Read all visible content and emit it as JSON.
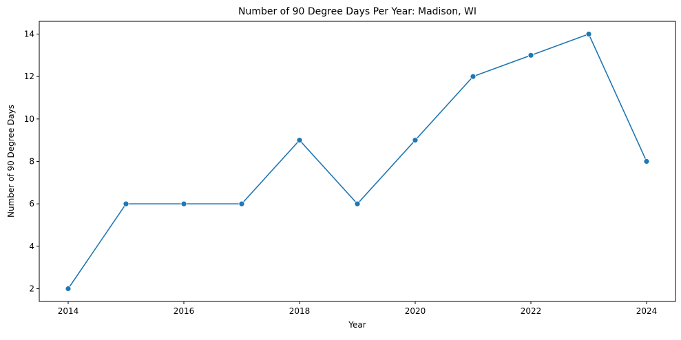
{
  "chart_data": {
    "type": "line",
    "title": "Number of 90 Degree Days Per Year: Madison, WI",
    "xlabel": "Year",
    "ylabel": "Number of 90 Degree Days",
    "x": [
      2014,
      2015,
      2016,
      2017,
      2018,
      2019,
      2020,
      2021,
      2022,
      2023,
      2024
    ],
    "series": [
      {
        "values": [
          2,
          6,
          6,
          6,
          9,
          6,
          9,
          12,
          13,
          14,
          8
        ],
        "color": "#1f77b4",
        "marker": "circle"
      }
    ],
    "xlim": [
      2013.5,
      2024.5
    ],
    "ylim": [
      1.4,
      14.6
    ],
    "xticks": [
      "2014",
      "2016",
      "2018",
      "2020",
      "2022",
      "2024"
    ],
    "yticks": [
      "2",
      "4",
      "6",
      "8",
      "10",
      "12",
      "14"
    ],
    "grid": false,
    "legend": "none"
  }
}
